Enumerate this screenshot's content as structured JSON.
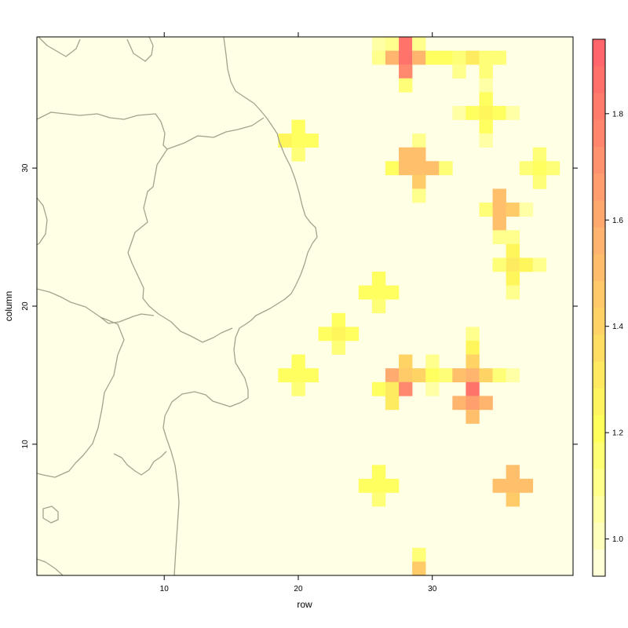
{
  "chart_data": {
    "type": "heatmap",
    "title": "",
    "xlabel": "row",
    "ylabel": "column",
    "xlim": [
      0.5,
      40.5
    ],
    "ylim": [
      0.5,
      39.5
    ],
    "x_ticks": [
      10,
      20,
      30
    ],
    "y_ticks": [
      10,
      20,
      30
    ],
    "colorbar": {
      "min": 0.93,
      "max": 1.94,
      "ticks": [
        1.0,
        1.2,
        1.4,
        1.6,
        1.8
      ],
      "tick_labels": [
        "1.0",
        "1.2",
        "1.4",
        "1.6",
        "1.8"
      ],
      "levels": 20
    },
    "background_value": 0.96,
    "background_color": "#ffffe5",
    "cells": [
      [
        26,
        39,
        1.05
      ],
      [
        27,
        39,
        1.1
      ],
      [
        28,
        39,
        1.85
      ],
      [
        29,
        39,
        1.1
      ],
      [
        26,
        38,
        1.1
      ],
      [
        27,
        38,
        1.55
      ],
      [
        28,
        38,
        1.85
      ],
      [
        29,
        38,
        1.55
      ],
      [
        30,
        38,
        1.2
      ],
      [
        31,
        38,
        1.2
      ],
      [
        32,
        38,
        1.15
      ],
      [
        33,
        38,
        1.3
      ],
      [
        34,
        38,
        1.15
      ],
      [
        35,
        38,
        1.15
      ],
      [
        28,
        37,
        1.75
      ],
      [
        32,
        37,
        1.1
      ],
      [
        34,
        37,
        1.15
      ],
      [
        28,
        36,
        1.15
      ],
      [
        34,
        36,
        1.05
      ],
      [
        34,
        35,
        1.2
      ],
      [
        32,
        34,
        1.05
      ],
      [
        33,
        34,
        1.2
      ],
      [
        34,
        34,
        1.25
      ],
      [
        35,
        34,
        1.2
      ],
      [
        36,
        34,
        1.05
      ],
      [
        34,
        33,
        1.2
      ],
      [
        20,
        33,
        1.2
      ],
      [
        19,
        32,
        1.25
      ],
      [
        20,
        32,
        1.2
      ],
      [
        21,
        32,
        1.2
      ],
      [
        29,
        32,
        1.1
      ],
      [
        34,
        32,
        1.05
      ],
      [
        20,
        31,
        1.15
      ],
      [
        28,
        31,
        1.5
      ],
      [
        29,
        31,
        1.5
      ],
      [
        38,
        31,
        1.15
      ],
      [
        27,
        30,
        1.2
      ],
      [
        28,
        30,
        1.5
      ],
      [
        29,
        30,
        1.5
      ],
      [
        30,
        30,
        1.5
      ],
      [
        31,
        30,
        1.15
      ],
      [
        37,
        30,
        1.15
      ],
      [
        38,
        30,
        1.2
      ],
      [
        39,
        30,
        1.15
      ],
      [
        29,
        29,
        1.45
      ],
      [
        38,
        29,
        1.15
      ],
      [
        29,
        28,
        1.1
      ],
      [
        35,
        28,
        1.5
      ],
      [
        34,
        27,
        1.15
      ],
      [
        35,
        27,
        1.5
      ],
      [
        36,
        27,
        1.45
      ],
      [
        37,
        27,
        1.05
      ],
      [
        35,
        26,
        1.5
      ],
      [
        35,
        25,
        1.1
      ],
      [
        36,
        25,
        1.1
      ],
      [
        36,
        24,
        1.25
      ],
      [
        35,
        23,
        1.15
      ],
      [
        36,
        23,
        1.3
      ],
      [
        37,
        23,
        1.25
      ],
      [
        38,
        23,
        1.1
      ],
      [
        36,
        22,
        1.25
      ],
      [
        26,
        22,
        1.2
      ],
      [
        25,
        21,
        1.2
      ],
      [
        26,
        21,
        1.2
      ],
      [
        27,
        21,
        1.2
      ],
      [
        36,
        21,
        1.1
      ],
      [
        26,
        20,
        1.15
      ],
      [
        23,
        19,
        1.2
      ],
      [
        22,
        18,
        1.2
      ],
      [
        23,
        18,
        1.25
      ],
      [
        24,
        18,
        1.2
      ],
      [
        33,
        18,
        1.1
      ],
      [
        23,
        17,
        1.15
      ],
      [
        33,
        17,
        1.25
      ],
      [
        20,
        16,
        1.2
      ],
      [
        28,
        16,
        1.4
      ],
      [
        30,
        16,
        1.1
      ],
      [
        33,
        16,
        1.4
      ],
      [
        19,
        15,
        1.2
      ],
      [
        20,
        15,
        1.2
      ],
      [
        21,
        15,
        1.2
      ],
      [
        27,
        15,
        1.6
      ],
      [
        28,
        15,
        1.45
      ],
      [
        29,
        15,
        1.4
      ],
      [
        30,
        15,
        1.2
      ],
      [
        31,
        15,
        1.15
      ],
      [
        32,
        15,
        1.5
      ],
      [
        33,
        15,
        1.55
      ],
      [
        34,
        15,
        1.4
      ],
      [
        35,
        15,
        1.15
      ],
      [
        36,
        15,
        1.05
      ],
      [
        20,
        14,
        1.15
      ],
      [
        26,
        14,
        1.2
      ],
      [
        27,
        14,
        1.3
      ],
      [
        28,
        14,
        1.75
      ],
      [
        30,
        14,
        1.05
      ],
      [
        33,
        14,
        1.85
      ],
      [
        27,
        13,
        1.3
      ],
      [
        32,
        13,
        1.55
      ],
      [
        33,
        13,
        1.65
      ],
      [
        34,
        13,
        1.55
      ],
      [
        33,
        12,
        1.5
      ],
      [
        26,
        8,
        1.2
      ],
      [
        25,
        7,
        1.2
      ],
      [
        26,
        7,
        1.2
      ],
      [
        27,
        7,
        1.2
      ],
      [
        36,
        8,
        1.5
      ],
      [
        35,
        7,
        1.5
      ],
      [
        36,
        7,
        1.5
      ],
      [
        37,
        7,
        1.5
      ],
      [
        26,
        6,
        1.15
      ],
      [
        36,
        6,
        1.45
      ],
      [
        29,
        2,
        1.15
      ],
      [
        29,
        1,
        1.45
      ]
    ]
  }
}
